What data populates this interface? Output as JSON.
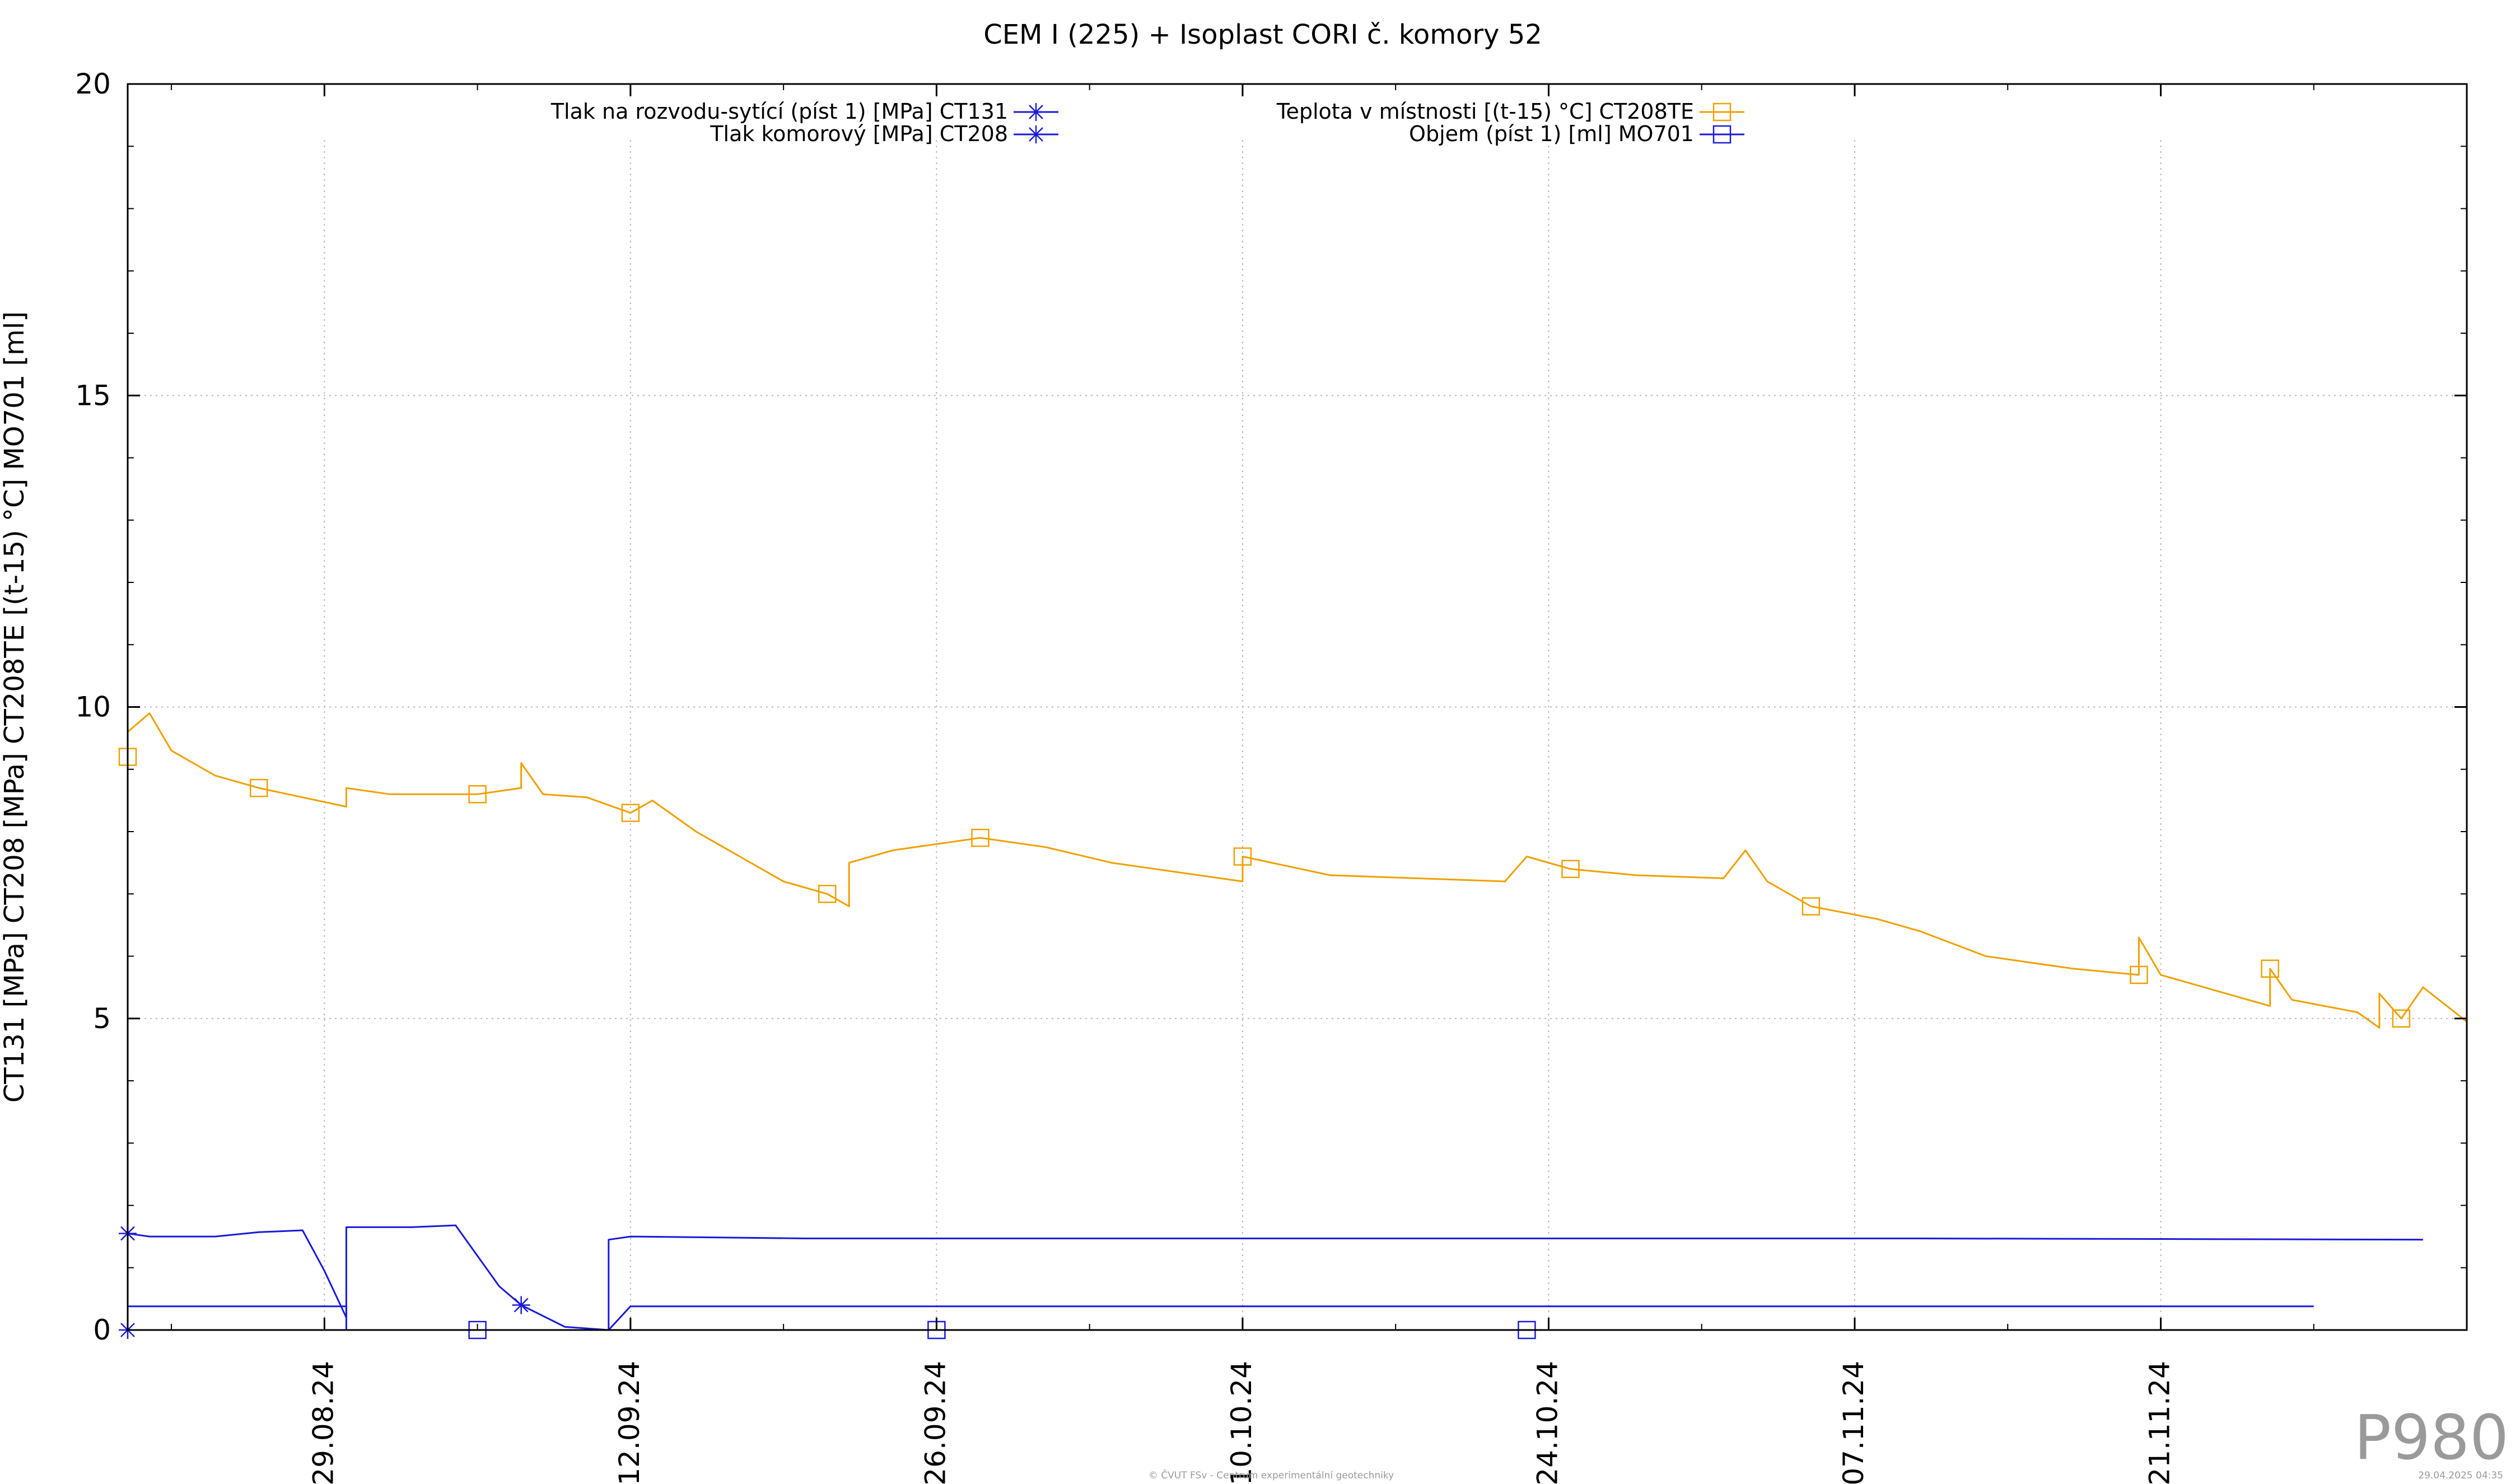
{
  "chart_data": {
    "type": "line",
    "title": "CEM I (225) + Isoplast CORI č. komory 52",
    "ylabel": "CT131 [MPa] CT208 [MPa] CT208TE [(t-15) °C] MO701 [ml]",
    "xlabel": "",
    "ylim": [
      0,
      20
    ],
    "xlim": [
      "2024-08-20",
      "2024-12-05"
    ],
    "y_ticks": [
      "0",
      "5",
      "10",
      "15",
      "20"
    ],
    "y_tick_values": [
      0,
      5,
      10,
      15,
      20
    ],
    "x_ticks": [
      "29.08.24",
      "12.09.24",
      "26.09.24",
      "10.10.24",
      "24.10.24",
      "07.11.24",
      "21.11.24"
    ],
    "x_tick_dates": [
      "2024-08-29",
      "2024-09-12",
      "2024-09-26",
      "2024-10-10",
      "2024-10-24",
      "2024-11-07",
      "2024-11-21"
    ],
    "grid": true,
    "legend_position": "top",
    "series": [
      {
        "name": "Tlak na rozvodu-sytící (píst 1) [MPa] CT131",
        "color": "#1a1adc",
        "marker": "asterisk",
        "points": [
          [
            "2024-08-20",
            1.55
          ],
          [
            "2024-08-21",
            1.5
          ],
          [
            "2024-08-24",
            1.5
          ],
          [
            "2024-08-26",
            1.57
          ],
          [
            "2024-08-28",
            1.6
          ],
          [
            "2024-08-29",
            0.95
          ],
          [
            "2024-08-30",
            0.2
          ],
          [
            "2024-08-30",
            1.65
          ],
          [
            "2024-09-02",
            1.65
          ],
          [
            "2024-09-04",
            1.68
          ],
          [
            "2024-09-06",
            0.7
          ],
          [
            "2024-09-07",
            0.4
          ],
          [
            "2024-09-09",
            0.05
          ],
          [
            "2024-09-11",
            0.0
          ],
          [
            "2024-09-11",
            1.45
          ],
          [
            "2024-09-12",
            1.5
          ],
          [
            "2024-09-20",
            1.47
          ],
          [
            "2024-10-10",
            1.47
          ],
          [
            "2024-11-10",
            1.47
          ],
          [
            "2024-12-03",
            1.45
          ]
        ]
      },
      {
        "name": "Tlak komorový [MPa] CT208",
        "color": "#1a1adc",
        "marker": "asterisk",
        "points": [
          [
            "2024-08-20",
            0.0
          ],
          [
            "2024-08-20",
            0.38
          ],
          [
            "2024-08-30",
            0.38
          ],
          [
            "2024-08-30",
            0.0
          ],
          [
            "2024-09-11",
            0.0
          ],
          [
            "2024-09-12",
            0.38
          ],
          [
            "2024-11-28",
            0.38
          ]
        ]
      },
      {
        "name": "Teplota v místnosti [(t-15) °C] CT208TE",
        "color": "#f0a000",
        "marker": "square",
        "points": [
          [
            "2024-08-20",
            9.2
          ],
          [
            "2024-08-20",
            9.6
          ],
          [
            "2024-08-21",
            9.9
          ],
          [
            "2024-08-22",
            9.3
          ],
          [
            "2024-08-24",
            8.9
          ],
          [
            "2024-08-26",
            8.7
          ],
          [
            "2024-08-28",
            8.55
          ],
          [
            "2024-08-30",
            8.4
          ],
          [
            "2024-08-30",
            8.7
          ],
          [
            "2024-09-01",
            8.6
          ],
          [
            "2024-09-05",
            8.6
          ],
          [
            "2024-09-07",
            8.7
          ],
          [
            "2024-09-07",
            9.1
          ],
          [
            "2024-09-08",
            8.6
          ],
          [
            "2024-09-10",
            8.55
          ],
          [
            "2024-09-12",
            8.3
          ],
          [
            "2024-09-13",
            8.5
          ],
          [
            "2024-09-15",
            8.0
          ],
          [
            "2024-09-17",
            7.6
          ],
          [
            "2024-09-19",
            7.2
          ],
          [
            "2024-09-21",
            7.0
          ],
          [
            "2024-09-22",
            6.8
          ],
          [
            "2024-09-22",
            7.5
          ],
          [
            "2024-09-24",
            7.7
          ],
          [
            "2024-09-26",
            7.8
          ],
          [
            "2024-09-28",
            7.9
          ],
          [
            "2024-10-01",
            7.75
          ],
          [
            "2024-10-04",
            7.5
          ],
          [
            "2024-10-07",
            7.35
          ],
          [
            "2024-10-10",
            7.2
          ],
          [
            "2024-10-10",
            7.6
          ],
          [
            "2024-10-14",
            7.3
          ],
          [
            "2024-10-18",
            7.25
          ],
          [
            "2024-10-22",
            7.2
          ],
          [
            "2024-10-23",
            7.6
          ],
          [
            "2024-10-25",
            7.4
          ],
          [
            "2024-10-28",
            7.3
          ],
          [
            "2024-11-01",
            7.25
          ],
          [
            "2024-11-02",
            7.7
          ],
          [
            "2024-11-03",
            7.2
          ],
          [
            "2024-11-05",
            6.8
          ],
          [
            "2024-11-08",
            6.6
          ],
          [
            "2024-11-10",
            6.4
          ],
          [
            "2024-11-13",
            6.0
          ],
          [
            "2024-11-17",
            5.8
          ],
          [
            "2024-11-20",
            5.7
          ],
          [
            "2024-11-20",
            6.3
          ],
          [
            "2024-11-21",
            5.7
          ],
          [
            "2024-11-24",
            5.4
          ],
          [
            "2024-11-26",
            5.2
          ],
          [
            "2024-11-26",
            5.8
          ],
          [
            "2024-11-27",
            5.3
          ],
          [
            "2024-11-30",
            5.1
          ],
          [
            "2024-12-01",
            4.85
          ],
          [
            "2024-12-01",
            5.4
          ],
          [
            "2024-12-02",
            5.0
          ],
          [
            "2024-12-03",
            5.5
          ],
          [
            "2024-12-05",
            4.95
          ]
        ]
      },
      {
        "name": "Objem (píst 1) [ml] MO701",
        "color": "#1a1adc",
        "marker": "square",
        "points": [
          [
            "2024-09-05",
            0.0
          ],
          [
            "2024-09-26",
            0.0
          ],
          [
            "2024-10-23",
            0.0
          ]
        ]
      }
    ]
  },
  "footer": {
    "credit": "© ČVUT FSv - Centrum experimentální geotechniky",
    "timestamp": "29.04.2025 04:35",
    "watermark": "P980"
  }
}
